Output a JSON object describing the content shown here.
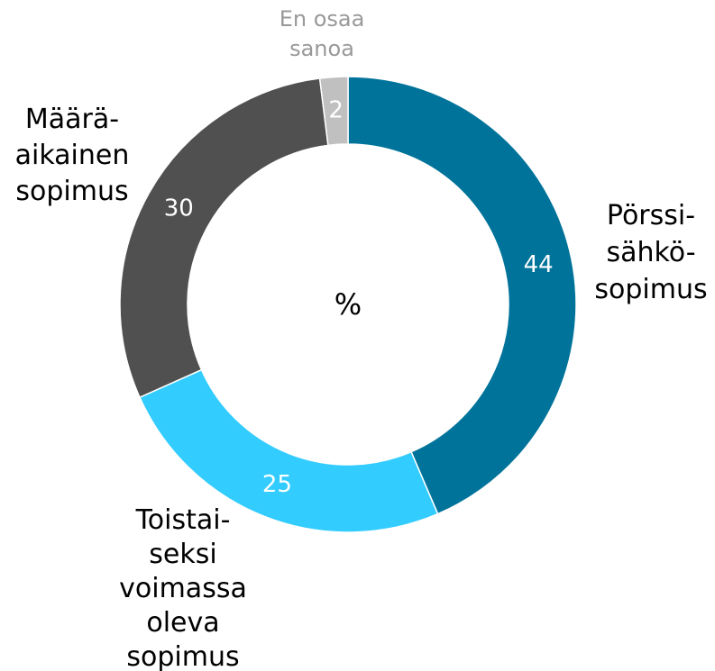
{
  "chart_data": {
    "type": "donut",
    "center_label": "%",
    "categories": [
      [
        "Pörssi-",
        "sähkö-",
        "sopimus"
      ],
      [
        "Toistai-",
        "seksi",
        "voimassa",
        "oleva",
        "sopimus"
      ],
      [
        "Määrä-",
        "aikainen",
        "sopimus"
      ],
      [
        "En osaa",
        "sanoa"
      ]
    ],
    "values": [
      44,
      25,
      30,
      2
    ],
    "colors": [
      "#00739b",
      "#33ccff",
      "#505050",
      "#c0c0c0"
    ],
    "label_colors": [
      "#000000",
      "#000000",
      "#000000",
      "#999999"
    ]
  }
}
